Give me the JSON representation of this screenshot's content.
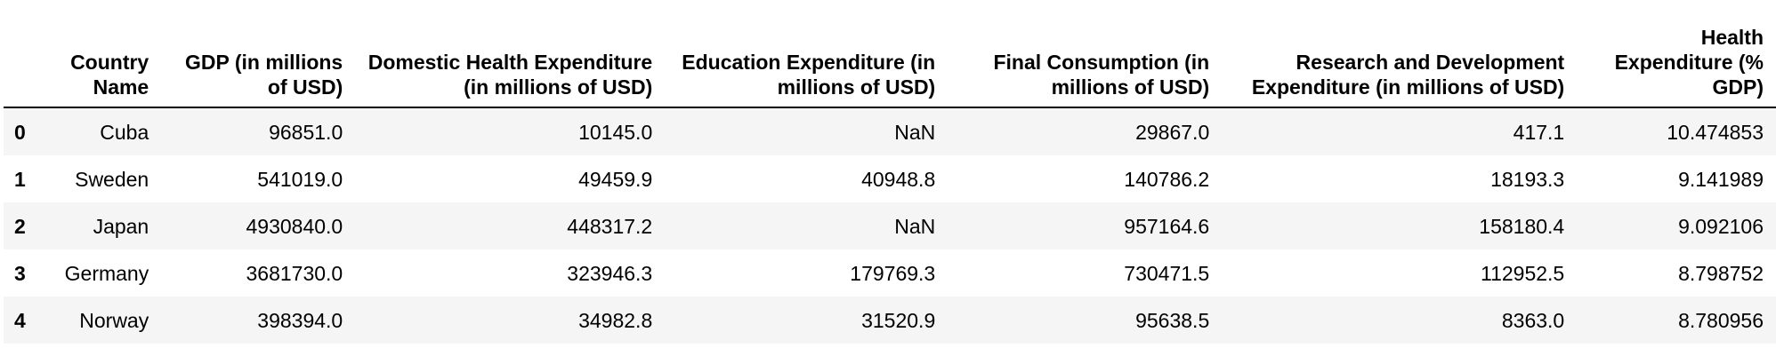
{
  "table": {
    "columns": [
      "",
      "Country Name",
      "GDP (in millions of USD)",
      "Domestic Health Expenditure (in millions of USD)",
      "Education Expenditure (in millions of USD)",
      "Final Consumption (in millions of USD)",
      "Research and Development Expenditure (in millions of USD)",
      "Health Expenditure (% GDP)"
    ],
    "rows": [
      [
        "0",
        "Cuba",
        "96851.0",
        "10145.0",
        "NaN",
        "29867.0",
        "417.1",
        "10.474853"
      ],
      [
        "1",
        "Sweden",
        "541019.0",
        "49459.9",
        "40948.8",
        "140786.2",
        "18193.3",
        "9.141989"
      ],
      [
        "2",
        "Japan",
        "4930840.0",
        "448317.2",
        "NaN",
        "957164.6",
        "158180.4",
        "9.092106"
      ],
      [
        "3",
        "Germany",
        "3681730.0",
        "323946.3",
        "179769.3",
        "730471.5",
        "112952.5",
        "8.798752"
      ],
      [
        "4",
        "Norway",
        "398394.0",
        "34982.8",
        "31520.9",
        "95638.5",
        "8363.0",
        "8.780956"
      ]
    ]
  }
}
